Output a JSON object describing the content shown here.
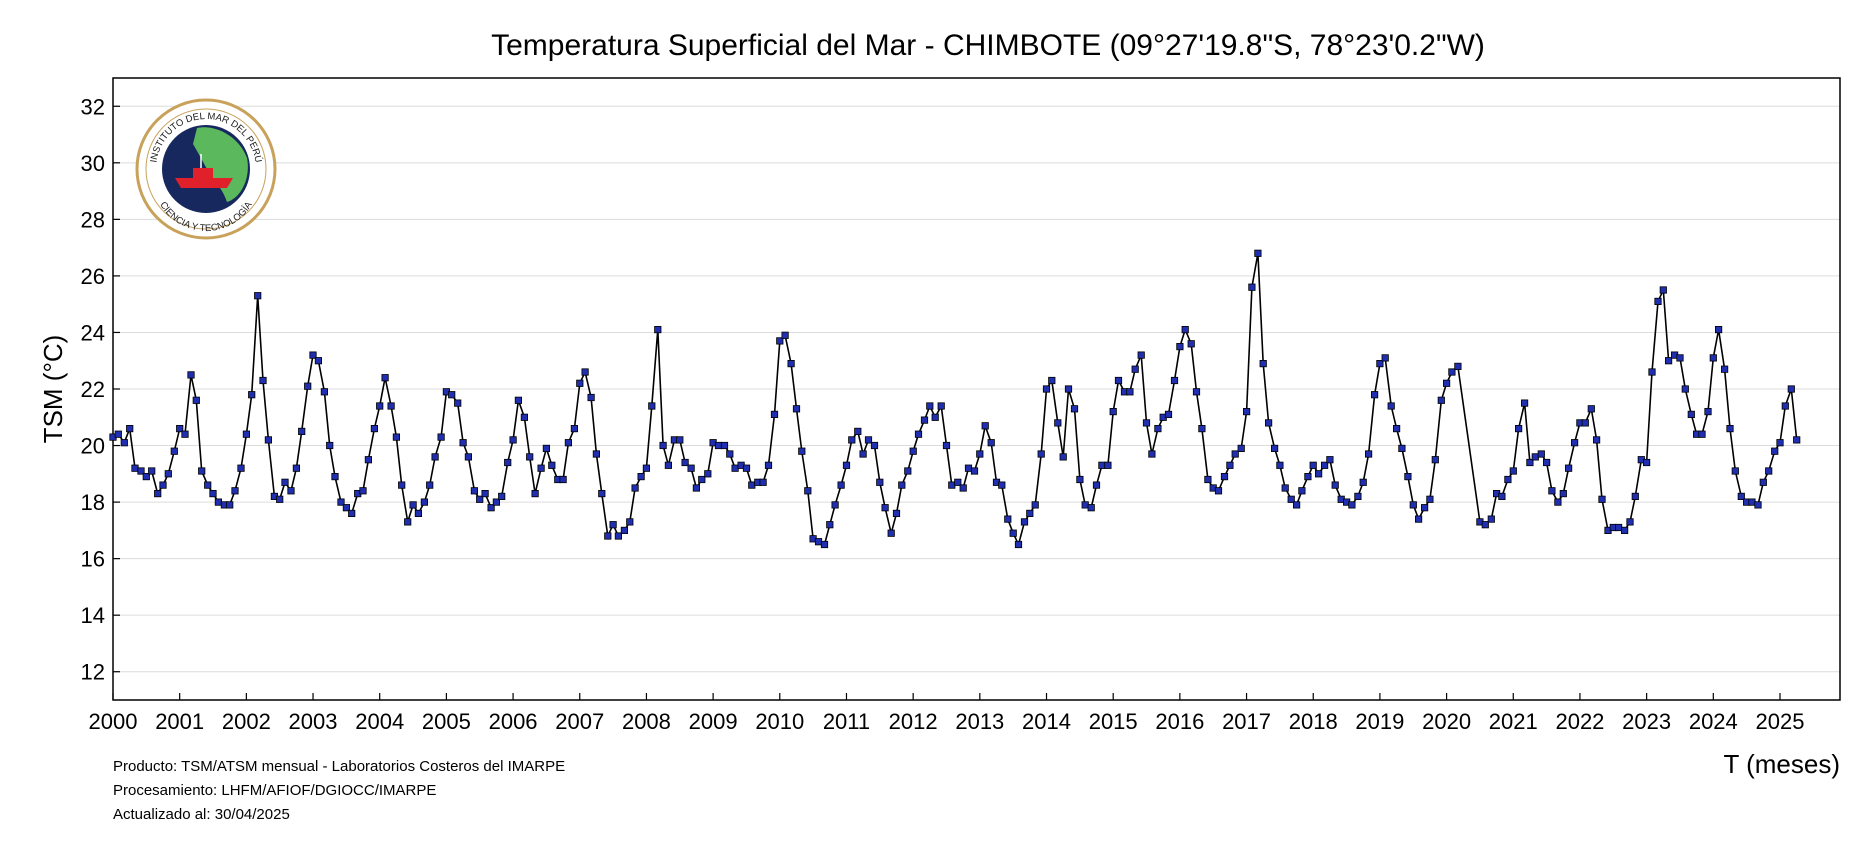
{
  "chart_data": {
    "type": "line",
    "title": "Temperatura Superficial del Mar - CHIMBOTE (09°27'19.8\"S, 78°23'0.2\"W)",
    "xlabel": "T (meses)",
    "ylabel": "TSM (°C)",
    "xlim": [
      2000,
      2025.9
    ],
    "ylim": [
      11,
      33
    ],
    "yticks": [
      12,
      14,
      16,
      18,
      20,
      22,
      24,
      26,
      28,
      30,
      32
    ],
    "xticks": [
      "2000",
      "2001",
      "2002",
      "2003",
      "2004",
      "2005",
      "2006",
      "2007",
      "2008",
      "2009",
      "2010",
      "2011",
      "2012",
      "2013",
      "2014",
      "2015",
      "2016",
      "2017",
      "2018",
      "2019",
      "2020",
      "2021",
      "2022",
      "2023",
      "2024",
      "2025"
    ],
    "grid": "horizontal",
    "line_color": "#000000",
    "marker_color": "#1f2fb0",
    "series": [
      {
        "x": [
          2000.0,
          2000.08,
          2000.17,
          2000.25,
          2000.33,
          2000.42,
          2000.5,
          2000.58,
          2000.67,
          2000.75,
          2000.83,
          2000.92,
          2001.0,
          2001.08,
          2001.17,
          2001.25,
          2001.33,
          2001.42,
          2001.5,
          2001.58,
          2001.67,
          2001.75,
          2001.83,
          2001.92,
          2002.0,
          2002.08,
          2002.17,
          2002.25,
          2002.33,
          2002.42,
          2002.5,
          2002.58,
          2002.67,
          2002.75,
          2002.83,
          2002.92,
          2003.0,
          2003.08,
          2003.17,
          2003.25,
          2003.33,
          2003.42,
          2003.5,
          2003.58,
          2003.67,
          2003.75,
          2003.83,
          2003.92,
          2004.0,
          2004.08,
          2004.17,
          2004.25,
          2004.33,
          2004.42,
          2004.5,
          2004.58,
          2004.67,
          2004.75,
          2004.83,
          2004.92,
          2005.0,
          2005.08,
          2005.17,
          2005.25,
          2005.33,
          2005.42,
          2005.5,
          2005.58,
          2005.67,
          2005.75,
          2005.83,
          2005.92,
          2006.0,
          2006.08,
          2006.17,
          2006.25,
          2006.33,
          2006.42,
          2006.5,
          2006.58,
          2006.67,
          2006.75,
          2006.83,
          2006.92,
          2007.0,
          2007.08,
          2007.17,
          2007.25,
          2007.33,
          2007.42,
          2007.5,
          2007.58,
          2007.67,
          2007.75,
          2007.83,
          2007.92,
          2008.0,
          2008.08,
          2008.17,
          2008.25,
          2008.33,
          2008.42,
          2008.5,
          2008.58,
          2008.67,
          2008.75,
          2008.83,
          2008.92,
          2009.0,
          2009.08,
          2009.17,
          2009.25,
          2009.33,
          2009.42,
          2009.5,
          2009.58,
          2009.67,
          2009.75,
          2009.83,
          2009.92,
          2010.0,
          2010.08,
          2010.17,
          2010.25,
          2010.33,
          2010.42,
          2010.5,
          2010.58,
          2010.67,
          2010.75,
          2010.83,
          2010.92,
          2011.0,
          2011.08,
          2011.17,
          2011.25,
          2011.33,
          2011.42,
          2011.5,
          2011.58,
          2011.67,
          2011.75,
          2011.83,
          2011.92,
          2012.0,
          2012.08,
          2012.17,
          2012.25,
          2012.33,
          2012.42,
          2012.5,
          2012.58,
          2012.67,
          2012.75,
          2012.83,
          2012.92,
          2013.0,
          2013.08,
          2013.17,
          2013.25,
          2013.33,
          2013.42,
          2013.5,
          2013.58,
          2013.67,
          2013.75,
          2013.83,
          2013.92,
          2014.0,
          2014.08,
          2014.17,
          2014.25,
          2014.33,
          2014.42,
          2014.5,
          2014.58,
          2014.67,
          2014.75,
          2014.83,
          2014.92,
          2015.0,
          2015.08,
          2015.17,
          2015.25,
          2015.33,
          2015.42,
          2015.5,
          2015.58,
          2015.67,
          2015.75,
          2015.83,
          2015.92,
          2016.0,
          2016.08,
          2016.17,
          2016.25,
          2016.33,
          2016.42,
          2016.5,
          2016.58,
          2016.67,
          2016.75,
          2016.83,
          2016.92,
          2017.0,
          2017.08,
          2017.17,
          2017.25,
          2017.33,
          2017.42,
          2017.5,
          2017.58,
          2017.67,
          2017.75,
          2017.83,
          2017.92,
          2018.0,
          2018.08,
          2018.17,
          2018.25,
          2018.33,
          2018.42,
          2018.5,
          2018.58,
          2018.67,
          2018.75,
          2018.83,
          2018.92,
          2019.0,
          2019.08,
          2019.17,
          2019.25,
          2019.33,
          2019.42,
          2019.5,
          2019.58,
          2019.67,
          2019.75,
          2019.83,
          2019.92,
          2020.0,
          2020.08,
          2020.17,
          2020.5,
          2020.58,
          2020.67,
          2020.75,
          2020.83,
          2020.92,
          2021.0,
          2021.08,
          2021.17,
          2021.25,
          2021.33,
          2021.42,
          2021.5,
          2021.58,
          2021.67,
          2021.75,
          2021.83,
          2021.92,
          2022.0,
          2022.08,
          2022.17,
          2022.25,
          2022.33,
          2022.42,
          2022.5,
          2022.58,
          2022.67,
          2022.75,
          2022.83,
          2022.92,
          2023.0,
          2023.08,
          2023.17,
          2023.25,
          2023.33,
          2023.42,
          2023.5,
          2023.58,
          2023.67,
          2023.75,
          2023.83,
          2023.92,
          2024.0,
          2024.08,
          2024.17,
          2024.25,
          2024.33,
          2024.42,
          2024.5,
          2024.58,
          2024.67,
          2024.75,
          2024.83,
          2024.92,
          2025.0,
          2025.08,
          2025.17,
          2025.25
        ],
        "y": [
          20.3,
          20.4,
          20.1,
          20.6,
          19.2,
          19.1,
          18.9,
          19.1,
          18.3,
          18.6,
          19.0,
          19.8,
          20.6,
          20.4,
          22.5,
          21.6,
          19.1,
          18.6,
          18.3,
          18.0,
          17.9,
          17.9,
          18.4,
          19.2,
          20.4,
          21.8,
          25.3,
          22.3,
          20.2,
          18.2,
          18.1,
          18.7,
          18.4,
          19.2,
          20.5,
          22.1,
          23.2,
          23.0,
          21.9,
          20.0,
          18.9,
          18.0,
          17.8,
          17.6,
          18.3,
          18.4,
          19.5,
          20.6,
          21.4,
          22.4,
          21.4,
          20.3,
          18.6,
          17.3,
          17.9,
          17.6,
          18.0,
          18.6,
          19.6,
          20.3,
          21.9,
          21.8,
          21.5,
          20.1,
          19.6,
          18.4,
          18.1,
          18.3,
          17.8,
          18.0,
          18.2,
          19.4,
          20.2,
          21.6,
          21.0,
          19.6,
          18.3,
          19.2,
          19.9,
          19.3,
          18.8,
          18.8,
          20.1,
          20.6,
          22.2,
          22.6,
          21.7,
          19.7,
          18.3,
          16.8,
          17.2,
          16.8,
          17.0,
          17.3,
          18.5,
          18.9,
          19.2,
          21.4,
          24.1,
          20.0,
          19.3,
          20.2,
          20.2,
          19.4,
          19.2,
          18.5,
          18.8,
          19.0,
          20.1,
          20.0,
          20.0,
          19.7,
          19.2,
          19.3,
          19.2,
          18.6,
          18.7,
          18.7,
          19.3,
          21.1,
          23.7,
          23.9,
          22.9,
          21.3,
          19.8,
          18.4,
          16.7,
          16.6,
          16.5,
          17.2,
          17.9,
          18.6,
          19.3,
          20.2,
          20.5,
          19.7,
          20.2,
          20.0,
          18.7,
          17.8,
          16.9,
          17.6,
          18.6,
          19.1,
          19.8,
          20.4,
          20.9,
          21.4,
          21.0,
          21.4,
          20.0,
          18.6,
          18.7,
          18.5,
          19.2,
          19.1,
          19.7,
          20.7,
          20.1,
          18.7,
          18.6,
          17.4,
          16.9,
          16.5,
          17.3,
          17.6,
          17.9,
          19.7,
          22.0,
          22.3,
          20.8,
          19.6,
          22.0,
          21.3,
          18.8,
          17.9,
          17.8,
          18.6,
          19.3,
          19.3,
          21.2,
          22.3,
          21.9,
          21.9,
          22.7,
          23.2,
          20.8,
          19.7,
          20.6,
          21.0,
          21.1,
          22.3,
          23.5,
          24.1,
          23.6,
          21.9,
          20.6,
          18.8,
          18.5,
          18.4,
          18.9,
          19.3,
          19.7,
          19.9,
          21.2,
          25.6,
          26.8,
          22.9,
          20.8,
          19.9,
          19.3,
          18.5,
          18.1,
          17.9,
          18.4,
          18.9,
          19.3,
          19.0,
          19.3,
          19.5,
          18.6,
          18.1,
          18.0,
          17.9,
          18.2,
          18.7,
          19.7,
          21.8,
          22.9,
          23.1,
          21.4,
          20.6,
          19.9,
          18.9,
          17.9,
          17.4,
          17.8,
          18.1,
          19.5,
          21.6,
          22.2,
          22.6,
          22.8,
          17.3,
          17.2,
          17.4,
          18.3,
          18.2,
          18.8,
          19.1,
          20.6,
          21.5,
          19.4,
          19.6,
          19.7,
          19.4,
          18.4,
          18.0,
          18.3,
          19.2,
          20.1,
          20.8,
          20.8,
          21.3,
          20.2,
          18.1,
          17.0,
          17.1,
          17.1,
          17.0,
          17.3,
          18.2,
          19.5,
          19.4,
          22.6,
          25.1,
          25.5,
          23.0,
          23.2,
          23.1,
          22.0,
          21.1,
          20.4,
          20.4,
          21.2,
          23.1,
          24.1,
          22.7,
          20.6,
          19.1,
          18.2,
          18.0,
          18.0,
          17.9,
          18.7,
          19.1,
          19.8,
          20.1,
          21.4,
          22.0,
          20.2
        ]
      }
    ]
  },
  "footer": {
    "line1": "Producto: TSM/ATSM mensual - Laboratorios Costeros del IMARPE",
    "line2": "Procesamiento: LHFM/AFIOF/DGIOCC/IMARPE",
    "line3": "Actualizado al: 30/04/2025"
  },
  "logo": {
    "top_text": "INSTITUTO DEL MAR DEL PERÚ",
    "bottom_text": "CIENCIA Y TECNOLOGÍA",
    "ring_color": "#c8a15a",
    "map_color": "#5cb85c",
    "sea_color": "#16285e",
    "ship_color": "#e0202a"
  }
}
